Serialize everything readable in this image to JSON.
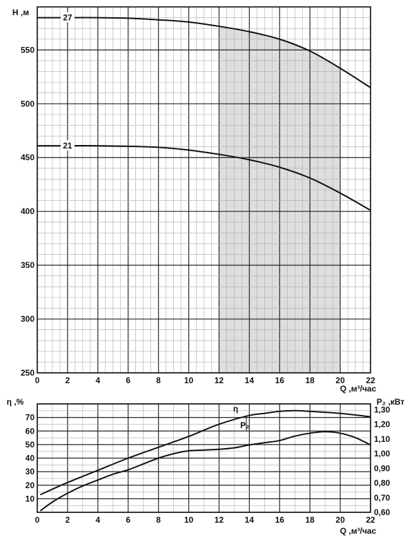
{
  "chart_data": [
    {
      "type": "line",
      "ylabel": "H ,м",
      "xlabel": "Q ,м³/час",
      "xlim": [
        0,
        22
      ],
      "ylim": [
        250,
        590
      ],
      "x_ticks": [
        "0",
        "2",
        "4",
        "6",
        "8",
        "10",
        "12",
        "14",
        "16",
        "18",
        "20",
        "22"
      ],
      "y_ticks": [
        "250",
        "300",
        "350",
        "400",
        "450",
        "500",
        "550"
      ],
      "shaded_range": [
        12,
        20
      ],
      "grid": true,
      "series": [
        {
          "name": "27",
          "x": [
            0,
            2,
            4,
            6,
            8,
            10,
            12,
            14,
            16,
            18,
            20,
            22
          ],
          "y": [
            580,
            580,
            580,
            579.5,
            578,
            576,
            572,
            567,
            560,
            549,
            533,
            515
          ]
        },
        {
          "name": "21",
          "x": [
            0,
            2,
            4,
            6,
            8,
            10,
            12,
            14,
            16,
            18,
            20,
            22
          ],
          "y": [
            461,
            461,
            461,
            460.5,
            459.5,
            457,
            453,
            448,
            441,
            431,
            417,
            401
          ]
        }
      ]
    },
    {
      "type": "line",
      "ylabel": "η ,%",
      "ylabel_right": "P₂ ,кВт",
      "xlabel": "Q ,м³/час",
      "xlim": [
        0,
        22
      ],
      "ylim_left": [
        0,
        80
      ],
      "ylim_right": [
        0.6,
        1.34
      ],
      "x_ticks": [
        "0",
        "2",
        "4",
        "6",
        "8",
        "10",
        "12",
        "14",
        "16",
        "18",
        "20",
        "22"
      ],
      "y_ticks_left": [
        "10",
        "20",
        "30",
        "40",
        "50",
        "60",
        "70"
      ],
      "y_ticks_right": [
        "0,60",
        "0,70",
        "0,80",
        "0,90",
        "1,00",
        "1,10",
        "1,20",
        "1,30"
      ],
      "grid": true,
      "series": [
        {
          "name": "η",
          "axis": "left",
          "x": [
            0.2,
            2,
            4,
            6,
            8,
            10,
            12,
            14,
            15,
            16,
            17,
            18,
            20,
            22
          ],
          "y": [
            13,
            22,
            31,
            40,
            48,
            56,
            65,
            71.5,
            73,
            74.5,
            75,
            74.5,
            73,
            70.5
          ]
        },
        {
          "name": "P₂",
          "axis": "right",
          "x": [
            0.2,
            1,
            2,
            3,
            4,
            5,
            6,
            7,
            8,
            9,
            10,
            11,
            12,
            13,
            14,
            15,
            16,
            17,
            18,
            19,
            20,
            21,
            22
          ],
          "y": [
            0.61,
            0.67,
            0.73,
            0.78,
            0.82,
            0.86,
            0.89,
            0.93,
            0.97,
            1.0,
            1.02,
            1.025,
            1.03,
            1.04,
            1.06,
            1.075,
            1.09,
            1.12,
            1.14,
            1.15,
            1.14,
            1.11,
            1.06
          ]
        }
      ]
    }
  ]
}
